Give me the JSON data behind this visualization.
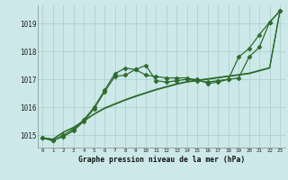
{
  "title": "Graphe pression niveau de la mer (hPa)",
  "bg_color": "#cce8e8",
  "grid_color": "#aacccc",
  "line_color": "#2d6b2d",
  "xlim": [
    -0.5,
    23.5
  ],
  "ylim": [
    1014.55,
    1019.65
  ],
  "yticks": [
    1015,
    1016,
    1017,
    1018,
    1019
  ],
  "xticks": [
    0,
    1,
    2,
    3,
    4,
    5,
    6,
    7,
    8,
    9,
    10,
    11,
    12,
    13,
    14,
    15,
    16,
    17,
    18,
    19,
    20,
    21,
    22,
    23
  ],
  "series": [
    {
      "y": [
        1014.9,
        1014.8,
        1014.95,
        1015.15,
        1015.5,
        1015.95,
        1016.55,
        1017.1,
        1017.15,
        1017.35,
        1017.5,
        1016.95,
        1016.9,
        1016.95,
        1017.0,
        1017.0,
        1016.85,
        1016.9,
        1017.0,
        1017.05,
        1017.8,
        1018.15,
        1019.05,
        1019.45
      ],
      "marker": "D",
      "markersize": 2.5,
      "lw": 0.9
    },
    {
      "y": [
        1014.9,
        1014.8,
        1015.0,
        1015.2,
        1015.55,
        1016.0,
        1016.6,
        1017.2,
        1017.4,
        1017.35,
        1017.15,
        1017.1,
        1017.05,
        1017.05,
        1017.05,
        1016.95,
        1016.9,
        1016.95,
        1017.0,
        1017.8,
        1018.1,
        1018.6,
        1019.05,
        1019.45
      ],
      "marker": "D",
      "markersize": 2.5,
      "lw": 0.9
    },
    {
      "y": [
        1014.9,
        1014.85,
        1015.1,
        1015.25,
        1015.5,
        1015.75,
        1015.95,
        1016.1,
        1016.25,
        1016.38,
        1016.5,
        1016.62,
        1016.72,
        1016.82,
        1016.9,
        1016.95,
        1017.0,
        1017.05,
        1017.1,
        1017.15,
        1017.2,
        1017.3,
        1017.4,
        1019.45
      ],
      "marker": null,
      "markersize": 0,
      "lw": 0.9
    },
    {
      "y": [
        1014.9,
        1014.85,
        1015.1,
        1015.28,
        1015.52,
        1015.76,
        1015.97,
        1016.12,
        1016.27,
        1016.4,
        1016.52,
        1016.64,
        1016.74,
        1016.84,
        1016.92,
        1016.97,
        1017.02,
        1017.07,
        1017.12,
        1017.17,
        1017.22,
        1017.32,
        1017.42,
        1019.45
      ],
      "marker": null,
      "markersize": 0,
      "lw": 0.9
    }
  ]
}
